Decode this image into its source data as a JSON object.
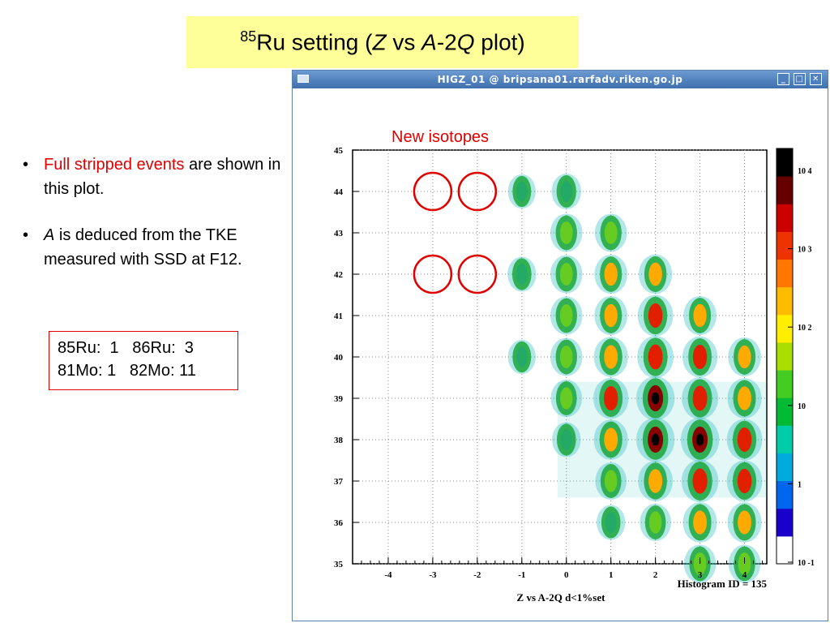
{
  "slide": {
    "title": {
      "pre": "85",
      "a": "Ru setting (",
      "z": "Z",
      "b": " vs ",
      "c": "A",
      "d": "-2",
      "q": "Q",
      "e": " plot)"
    },
    "bullets": [
      {
        "red_text": "Full stripped events",
        "text_after": " are shown in this plot."
      },
      {
        "italic_text": "A",
        "text_after": " is deduced from the TKE measured with SSD at F12."
      }
    ],
    "counts": "85Ru:  1   86Ru:  3\n81Mo: 1   82Mo: 11",
    "annotation": "New isotopes"
  },
  "window": {
    "title": "HIGZ_01 @ bripsana01.rarfadv.riken.go.jp",
    "buttons": [
      "minimize",
      "maximize",
      "close"
    ]
  },
  "colors": {
    "accent_red": "#e00000",
    "title_bg": "#ffff99",
    "window_blue": "#4f7fbe"
  },
  "chart_data": {
    "type": "heatmap",
    "title": "",
    "xlabel": "Z vs A-2Q d<1%set",
    "ylabel": "",
    "xlim": [
      -4.8,
      4.5
    ],
    "ylim": [
      35,
      45
    ],
    "x_ticks": [
      "-4",
      "-3",
      "-2",
      "-1",
      "0",
      "1",
      "2",
      "3",
      "4"
    ],
    "y_ticks": [
      "35",
      "36",
      "37",
      "38",
      "39",
      "40",
      "41",
      "42",
      "43",
      "44",
      "45"
    ],
    "grid": true,
    "footer": "Histogram ID =   135",
    "colorbar": {
      "scale": "log",
      "labels": [
        "10 -1",
        "1",
        "10",
        "10 2",
        "10 3",
        "10 4"
      ]
    },
    "clusters": [
      {
        "x": -1,
        "y": 44,
        "level": 0.35
      },
      {
        "x": -1,
        "y": 42,
        "level": 0.4
      },
      {
        "x": -1,
        "y": 40,
        "level": 0.35
      },
      {
        "x": 0,
        "y": 44,
        "level": 0.45
      },
      {
        "x": 0,
        "y": 43,
        "level": 0.6
      },
      {
        "x": 0,
        "y": 42,
        "level": 0.6
      },
      {
        "x": 0,
        "y": 41,
        "level": 0.6
      },
      {
        "x": 0,
        "y": 40,
        "level": 0.6
      },
      {
        "x": 0,
        "y": 39,
        "level": 0.55
      },
      {
        "x": 0,
        "y": 38,
        "level": 0.4
      },
      {
        "x": 1,
        "y": 43,
        "level": 0.6
      },
      {
        "x": 1,
        "y": 42,
        "level": 0.65
      },
      {
        "x": 1,
        "y": 41,
        "level": 0.65
      },
      {
        "x": 1,
        "y": 40,
        "level": 0.72
      },
      {
        "x": 1,
        "y": 39,
        "level": 0.78
      },
      {
        "x": 1,
        "y": 38,
        "level": 0.72
      },
      {
        "x": 1,
        "y": 37,
        "level": 0.55
      },
      {
        "x": 1,
        "y": 36,
        "level": 0.4
      },
      {
        "x": 2,
        "y": 42,
        "level": 0.68
      },
      {
        "x": 2,
        "y": 41,
        "level": 0.8
      },
      {
        "x": 2,
        "y": 40,
        "level": 0.85
      },
      {
        "x": 2,
        "y": 39,
        "level": 0.97
      },
      {
        "x": 2,
        "y": 38,
        "level": 0.97
      },
      {
        "x": 2,
        "y": 37,
        "level": 0.75
      },
      {
        "x": 2,
        "y": 36,
        "level": 0.55
      },
      {
        "x": 3,
        "y": 41,
        "level": 0.65
      },
      {
        "x": 3,
        "y": 40,
        "level": 0.78
      },
      {
        "x": 3,
        "y": 39,
        "level": 0.85
      },
      {
        "x": 3,
        "y": 38,
        "level": 0.97
      },
      {
        "x": 3,
        "y": 37,
        "level": 0.88
      },
      {
        "x": 3,
        "y": 36,
        "level": 0.72
      },
      {
        "x": 3,
        "y": 35,
        "level": 0.6
      },
      {
        "x": 4,
        "y": 40,
        "level": 0.65
      },
      {
        "x": 4,
        "y": 39,
        "level": 0.72
      },
      {
        "x": 4,
        "y": 38,
        "level": 0.8
      },
      {
        "x": 4,
        "y": 37,
        "level": 0.8
      },
      {
        "x": 4,
        "y": 36,
        "level": 0.72
      },
      {
        "x": 4,
        "y": 35,
        "level": 0.6
      }
    ],
    "new_isotope_markers": [
      {
        "x": -3,
        "y": 44
      },
      {
        "x": -2,
        "y": 44
      },
      {
        "x": -3,
        "y": 42
      },
      {
        "x": -2,
        "y": 42
      }
    ]
  }
}
